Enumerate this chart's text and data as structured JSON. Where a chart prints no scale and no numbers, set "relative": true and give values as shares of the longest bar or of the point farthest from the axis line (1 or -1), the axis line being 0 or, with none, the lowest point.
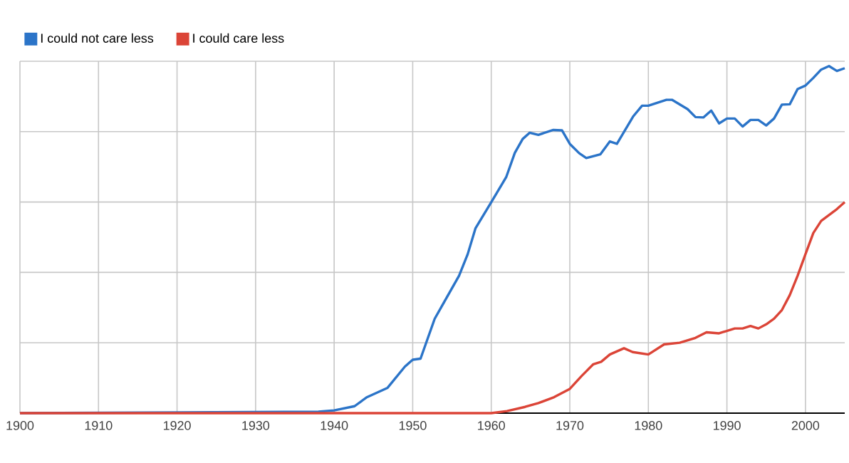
{
  "chart_data": {
    "type": "line",
    "relative": true,
    "xlim": [
      1900,
      2005
    ],
    "xticks": [
      1900,
      1910,
      1920,
      1930,
      1940,
      1950,
      1960,
      1970,
      1980,
      1990,
      2000
    ],
    "grid": true,
    "legend": "top left",
    "marker": "none",
    "line_style": "solid",
    "series": [
      {
        "name": "I could not care less",
        "color": "#2b74c8",
        "x": [
          1900,
          1938,
          1940,
          1942.6,
          1944.1,
          1946.8,
          1949,
          1950,
          1951,
          1952.8,
          1954,
          1955.9,
          1957,
          1958,
          1960,
          1961.9,
          1963,
          1964,
          1964.9,
          1966,
          1967.9,
          1969,
          1970,
          1971.2,
          1972.1,
          1973.9,
          1975.1,
          1976,
          1978.1,
          1979.2,
          1980,
          1982.3,
          1983,
          1985,
          1986,
          1987,
          1988,
          1989,
          1990,
          1991,
          1992,
          1993,
          1994,
          1995,
          1996,
          1997,
          1998,
          1999,
          2000,
          2001,
          2002,
          2003,
          2004,
          2005
        ],
        "values": [
          0,
          0.004,
          0.008,
          0.02,
          0.045,
          0.073,
          0.134,
          0.154,
          0.157,
          0.272,
          0.32,
          0.396,
          0.458,
          0.533,
          0.608,
          0.68,
          0.75,
          0.79,
          0.808,
          0.802,
          0.816,
          0.815,
          0.776,
          0.749,
          0.735,
          0.746,
          0.783,
          0.776,
          0.856,
          0.886,
          0.886,
          0.903,
          0.903,
          0.876,
          0.853,
          0.852,
          0.872,
          0.835,
          0.849,
          0.849,
          0.826,
          0.845,
          0.845,
          0.829,
          0.849,
          0.889,
          0.89,
          0.934,
          0.944,
          0.966,
          0.99,
          1,
          0.986,
          0.994
        ]
      },
      {
        "name": "I could care less",
        "color": "#db4437",
        "x": [
          1900,
          1960,
          1962,
          1964.3,
          1966,
          1968,
          1970,
          1971.5,
          1973,
          1974,
          1975.1,
          1976.9,
          1978,
          1980,
          1982,
          1984,
          1986,
          1987.4,
          1989,
          1991,
          1992,
          1993,
          1994,
          1995,
          1996,
          1997,
          1998,
          1999,
          2000,
          2001,
          2002,
          2003,
          2004,
          2005
        ],
        "values": [
          0,
          0,
          0.006,
          0.018,
          0.029,
          0.046,
          0.07,
          0.107,
          0.141,
          0.148,
          0.169,
          0.187,
          0.176,
          0.169,
          0.198,
          0.203,
          0.217,
          0.233,
          0.23,
          0.244,
          0.244,
          0.251,
          0.244,
          0.256,
          0.272,
          0.297,
          0.34,
          0.396,
          0.458,
          0.519,
          0.554,
          0.571,
          0.588,
          0.608
        ]
      }
    ]
  }
}
